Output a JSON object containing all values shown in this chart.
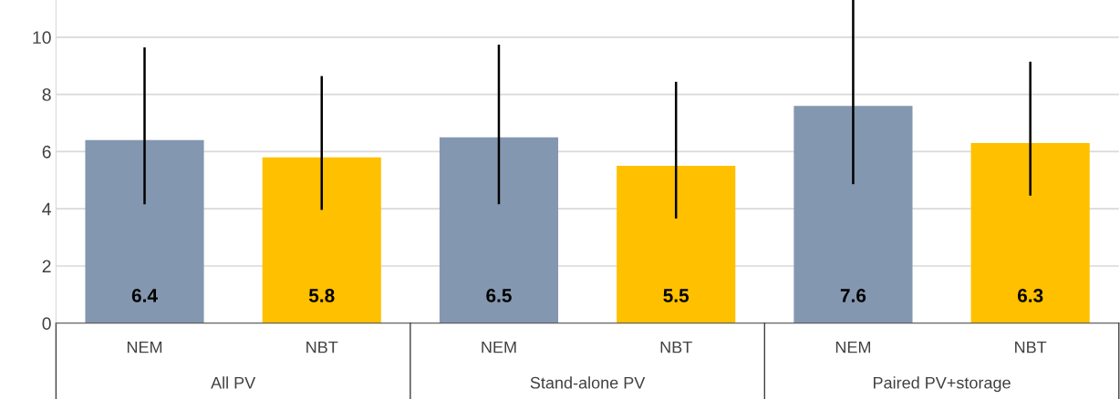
{
  "chart_data": {
    "type": "bar",
    "categories": [
      "NEM",
      "NBT",
      "NEM",
      "NBT",
      "NEM",
      "NBT"
    ],
    "values": [
      6.4,
      5.8,
      6.5,
      5.5,
      7.6,
      6.3
    ],
    "colors": [
      "#8497b0",
      "#ffc000",
      "#8497b0",
      "#ffc000",
      "#8497b0",
      "#ffc000"
    ],
    "errors": [
      [
        4.2,
        9.6
      ],
      [
        4.0,
        8.6
      ],
      [
        4.2,
        9.7
      ],
      [
        3.7,
        8.4
      ],
      [
        4.9,
        11.3
      ],
      [
        4.5,
        9.1
      ]
    ],
    "data_labels": true,
    "annotations": [
      "All PV",
      "Stand-alone PV",
      "Paired PV+storage"
    ],
    "ylim": [
      0,
      11.3
    ],
    "yticks": [
      0,
      2,
      4,
      6,
      8,
      10
    ],
    "grid": "y",
    "legend": false
  }
}
